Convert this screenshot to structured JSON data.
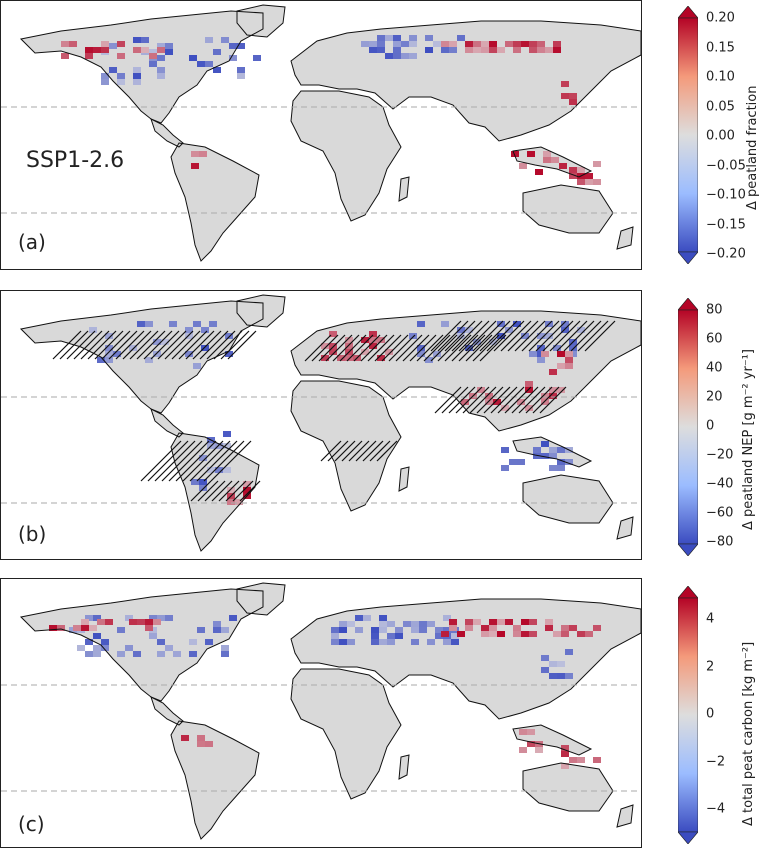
{
  "scenario": "SSP1-2.6",
  "colors": {
    "land": "#d9d9d9",
    "coast": "#111111",
    "negative": "#3b4cc0",
    "positive": "#b40426",
    "gridline": "#aaaaaa"
  },
  "panels": [
    {
      "label": "(a)",
      "colorbar": {
        "title": "Δ peatland fraction",
        "ticks": [
          "0.20",
          "0.15",
          "0.10",
          "0.05",
          "0.00",
          "−0.05",
          "−0.10",
          "−0.15",
          "−0.20"
        ],
        "range": [
          -0.2,
          0.2
        ]
      }
    },
    {
      "label": "(b)",
      "colorbar": {
        "title": "Δ peatland NEP [g m⁻² yr⁻¹]",
        "ticks": [
          "80",
          "60",
          "40",
          "20",
          "0",
          "−20",
          "−40",
          "−60",
          "−80"
        ],
        "range": [
          -80,
          80
        ]
      }
    },
    {
      "label": "(c)",
      "colorbar": {
        "title": "Δ total peat carbon [kg m⁻²]",
        "ticks": [
          "4",
          "2",
          "0",
          "−2",
          "−4"
        ],
        "range": [
          -5,
          5
        ]
      }
    }
  ]
}
